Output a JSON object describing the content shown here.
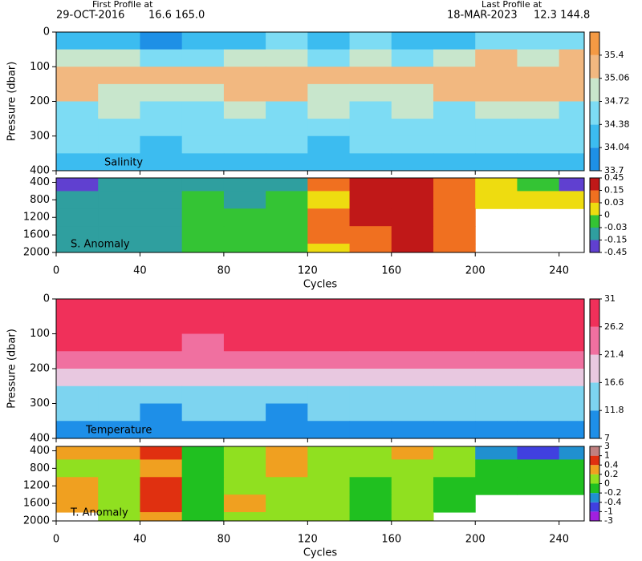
{
  "header": {
    "first_title": "First Profile at",
    "first_date": "29-OCT-2016",
    "first_pos": "16.6 165.0",
    "last_title": "Last Profile at",
    "last_date": "18-MAR-2023",
    "last_pos": "12.3 144.8"
  },
  "chart_data": [
    {
      "type": "heatmap",
      "label": "Salinity",
      "ylabel": "Pressure (dbar)",
      "y_reversed": true,
      "xlim": [
        0,
        252
      ],
      "xticks": [
        0,
        40,
        80,
        120,
        160,
        200,
        240
      ],
      "ylim": [
        0,
        400
      ],
      "yticks": [
        0,
        100,
        200,
        300,
        400
      ],
      "x": [
        10,
        30,
        50,
        70,
        90,
        110,
        130,
        150,
        170,
        190,
        210,
        230,
        250
      ],
      "y": [
        25,
        75,
        125,
        175,
        225,
        275,
        325,
        375
      ],
      "z": [
        [
          34.3,
          34.2,
          34.0,
          34.1,
          34.3,
          34.5,
          34.2,
          34.6,
          34.3,
          34.2,
          34.5,
          34.4,
          34.6
        ],
        [
          34.9,
          34.8,
          34.6,
          34.5,
          34.8,
          35.0,
          34.7,
          34.9,
          34.7,
          34.8,
          35.1,
          35.0,
          35.1
        ],
        [
          35.2,
          35.2,
          35.1,
          35.1,
          35.2,
          35.2,
          35.1,
          35.1,
          35.1,
          35.2,
          35.3,
          35.2,
          35.2
        ],
        [
          35.1,
          35.0,
          35.0,
          35.0,
          35.1,
          35.1,
          35.0,
          35.0,
          35.0,
          35.1,
          35.1,
          35.1,
          35.1
        ],
        [
          34.7,
          34.8,
          34.7,
          34.7,
          34.8,
          34.7,
          34.8,
          34.7,
          34.8,
          34.7,
          34.8,
          34.8,
          34.7
        ],
        [
          34.5,
          34.6,
          34.5,
          34.5,
          34.6,
          34.5,
          34.6,
          34.5,
          34.5,
          34.5,
          34.6,
          34.5,
          34.5
        ],
        [
          34.4,
          34.4,
          34.3,
          34.4,
          34.4,
          34.4,
          34.3,
          34.4,
          34.4,
          34.4,
          34.4,
          34.4,
          34.4
        ],
        [
          34.3,
          34.3,
          34.3,
          34.3,
          34.3,
          34.3,
          34.3,
          34.3,
          34.3,
          34.3,
          34.3,
          34.3,
          34.3
        ]
      ],
      "colorbar": {
        "levels": [
          33.7,
          34.04,
          34.38,
          34.72,
          35.06,
          35.4
        ],
        "colors": [
          "#1e90e6",
          "#3cbcf0",
          "#7ddcf4",
          "#c8e6cc",
          "#f2b880",
          "#f49a44"
        ]
      }
    },
    {
      "type": "heatmap",
      "label": "S. Anomaly",
      "xlabel": "Cycles",
      "y_reversed": true,
      "xlim": [
        0,
        252
      ],
      "xticks": [
        0,
        40,
        80,
        120,
        160,
        200,
        240
      ],
      "ylim": [
        300,
        2000
      ],
      "yticks": [
        400,
        800,
        1200,
        1600,
        2000
      ],
      "x": [
        10,
        30,
        50,
        70,
        90,
        110,
        130,
        150,
        170,
        190,
        210,
        230,
        250
      ],
      "y": [
        400,
        800,
        1200,
        1600,
        2000
      ],
      "z": [
        [
          -0.2,
          -0.1,
          -0.05,
          -0.05,
          -0.1,
          -0.05,
          0.05,
          0.2,
          0.2,
          0.1,
          0.02,
          -0.02,
          -0.2
        ],
        [
          -0.05,
          -0.04,
          -0.04,
          -0.02,
          -0.04,
          -0.02,
          0.02,
          0.2,
          0.2,
          0.1,
          0.02,
          0.02,
          0.01
        ],
        [
          -0.05,
          -0.05,
          -0.04,
          -0.02,
          -0.01,
          -0.02,
          0.05,
          0.2,
          0.2,
          0.1,
          null,
          null,
          null
        ],
        [
          -0.05,
          -0.05,
          -0.04,
          -0.02,
          -0.01,
          -0.01,
          0.05,
          0.1,
          0.2,
          0.1,
          null,
          null,
          null
        ],
        [
          -0.05,
          -0.05,
          -0.04,
          -0.02,
          -0.01,
          -0.01,
          0.02,
          0.1,
          0.2,
          0.1,
          null,
          null,
          null
        ]
      ],
      "colorbar": {
        "levels": [
          -0.45,
          -0.15,
          -0.03,
          0,
          0.03,
          0.15,
          0.45
        ],
        "colors": [
          "#6040d0",
          "#2f9f9f",
          "#34c434",
          "#eedc10",
          "#f07020",
          "#c01818"
        ]
      }
    },
    {
      "type": "heatmap",
      "label": "Temperature",
      "ylabel": "Pressure (dbar)",
      "y_reversed": true,
      "xlim": [
        0,
        252
      ],
      "xticks": [
        0,
        40,
        80,
        120,
        160,
        200,
        240
      ],
      "ylim": [
        0,
        400
      ],
      "yticks": [
        0,
        100,
        200,
        300,
        400
      ],
      "x": [
        10,
        30,
        50,
        70,
        90,
        110,
        130,
        150,
        170,
        190,
        210,
        230,
        250
      ],
      "y": [
        25,
        75,
        125,
        175,
        225,
        275,
        325,
        375
      ],
      "z": [
        [
          29,
          29.5,
          29.5,
          29.5,
          29.5,
          29.5,
          29.5,
          29.5,
          29.5,
          29.5,
          29.5,
          29.5,
          29.5
        ],
        [
          28,
          28.5,
          28.5,
          28,
          28.5,
          28.5,
          28.5,
          28.5,
          28.5,
          28.5,
          28.5,
          28.5,
          28.5
        ],
        [
          26.5,
          26.5,
          26.5,
          26,
          26.5,
          26.5,
          26.5,
          26.5,
          27,
          27,
          27,
          27,
          27
        ],
        [
          24,
          23,
          22,
          23,
          23,
          23,
          22,
          23,
          24,
          24,
          25,
          25,
          25
        ],
        [
          19,
          19,
          18,
          19,
          19,
          18,
          19,
          19,
          20,
          20,
          21,
          21,
          21
        ],
        [
          15,
          15,
          14,
          15,
          15,
          14,
          15,
          15,
          16,
          16,
          16,
          16,
          16
        ],
        [
          12,
          12,
          11,
          12,
          12,
          11,
          12,
          12,
          12,
          12,
          13,
          13,
          13
        ],
        [
          10,
          10,
          9.5,
          10,
          10,
          9.5,
          10,
          10,
          10,
          10,
          11,
          11,
          11
        ]
      ],
      "colorbar": {
        "levels": [
          7,
          11.8,
          16.6,
          21.4,
          26.2,
          31
        ],
        "colors": [
          "#1e8fe8",
          "#7dd4f0",
          "#e8c8e0",
          "#f070a0",
          "#f0305a"
        ]
      }
    },
    {
      "type": "heatmap",
      "label": "T. Anomaly",
      "xlabel": "Cycles",
      "y_reversed": true,
      "xlim": [
        0,
        252
      ],
      "xticks": [
        0,
        40,
        80,
        120,
        160,
        200,
        240
      ],
      "ylim": [
        300,
        2000
      ],
      "yticks": [
        400,
        800,
        1200,
        1600,
        2000
      ],
      "x": [
        10,
        30,
        50,
        70,
        90,
        110,
        130,
        150,
        170,
        190,
        210,
        230,
        250
      ],
      "y": [
        400,
        800,
        1200,
        1600,
        2000
      ],
      "z": [
        [
          0.3,
          0.2,
          0.5,
          -0.1,
          0.1,
          0.3,
          0.1,
          0.1,
          0.2,
          0.1,
          -0.3,
          -0.5,
          -0.3
        ],
        [
          0.1,
          0.1,
          0.3,
          -0.1,
          0.1,
          0.2,
          0.05,
          0.1,
          0.1,
          0.05,
          -0.1,
          -0.1,
          -0.1
        ],
        [
          0.3,
          0.05,
          0.5,
          -0.1,
          0.1,
          0.1,
          0.05,
          -0.1,
          0.1,
          -0.1,
          -0.1,
          -0.1,
          -0.1
        ],
        [
          0.2,
          0.05,
          0.5,
          -0.1,
          0.2,
          0.1,
          0.05,
          -0.1,
          0.1,
          -0.1,
          null,
          null,
          null
        ],
        [
          null,
          0.05,
          0.3,
          -0.1,
          0.1,
          0.1,
          0.05,
          -0.1,
          0.1,
          null,
          null,
          null,
          null
        ]
      ],
      "colorbar": {
        "levels": [
          -3,
          -1,
          -0.4,
          -0.2,
          0,
          0.2,
          0.4,
          1,
          3
        ],
        "colors": [
          "#a020e0",
          "#4040e0",
          "#2090d0",
          "#20c020",
          "#90e020",
          "#f0a020",
          "#e03010",
          "#c08080"
        ]
      }
    }
  ]
}
